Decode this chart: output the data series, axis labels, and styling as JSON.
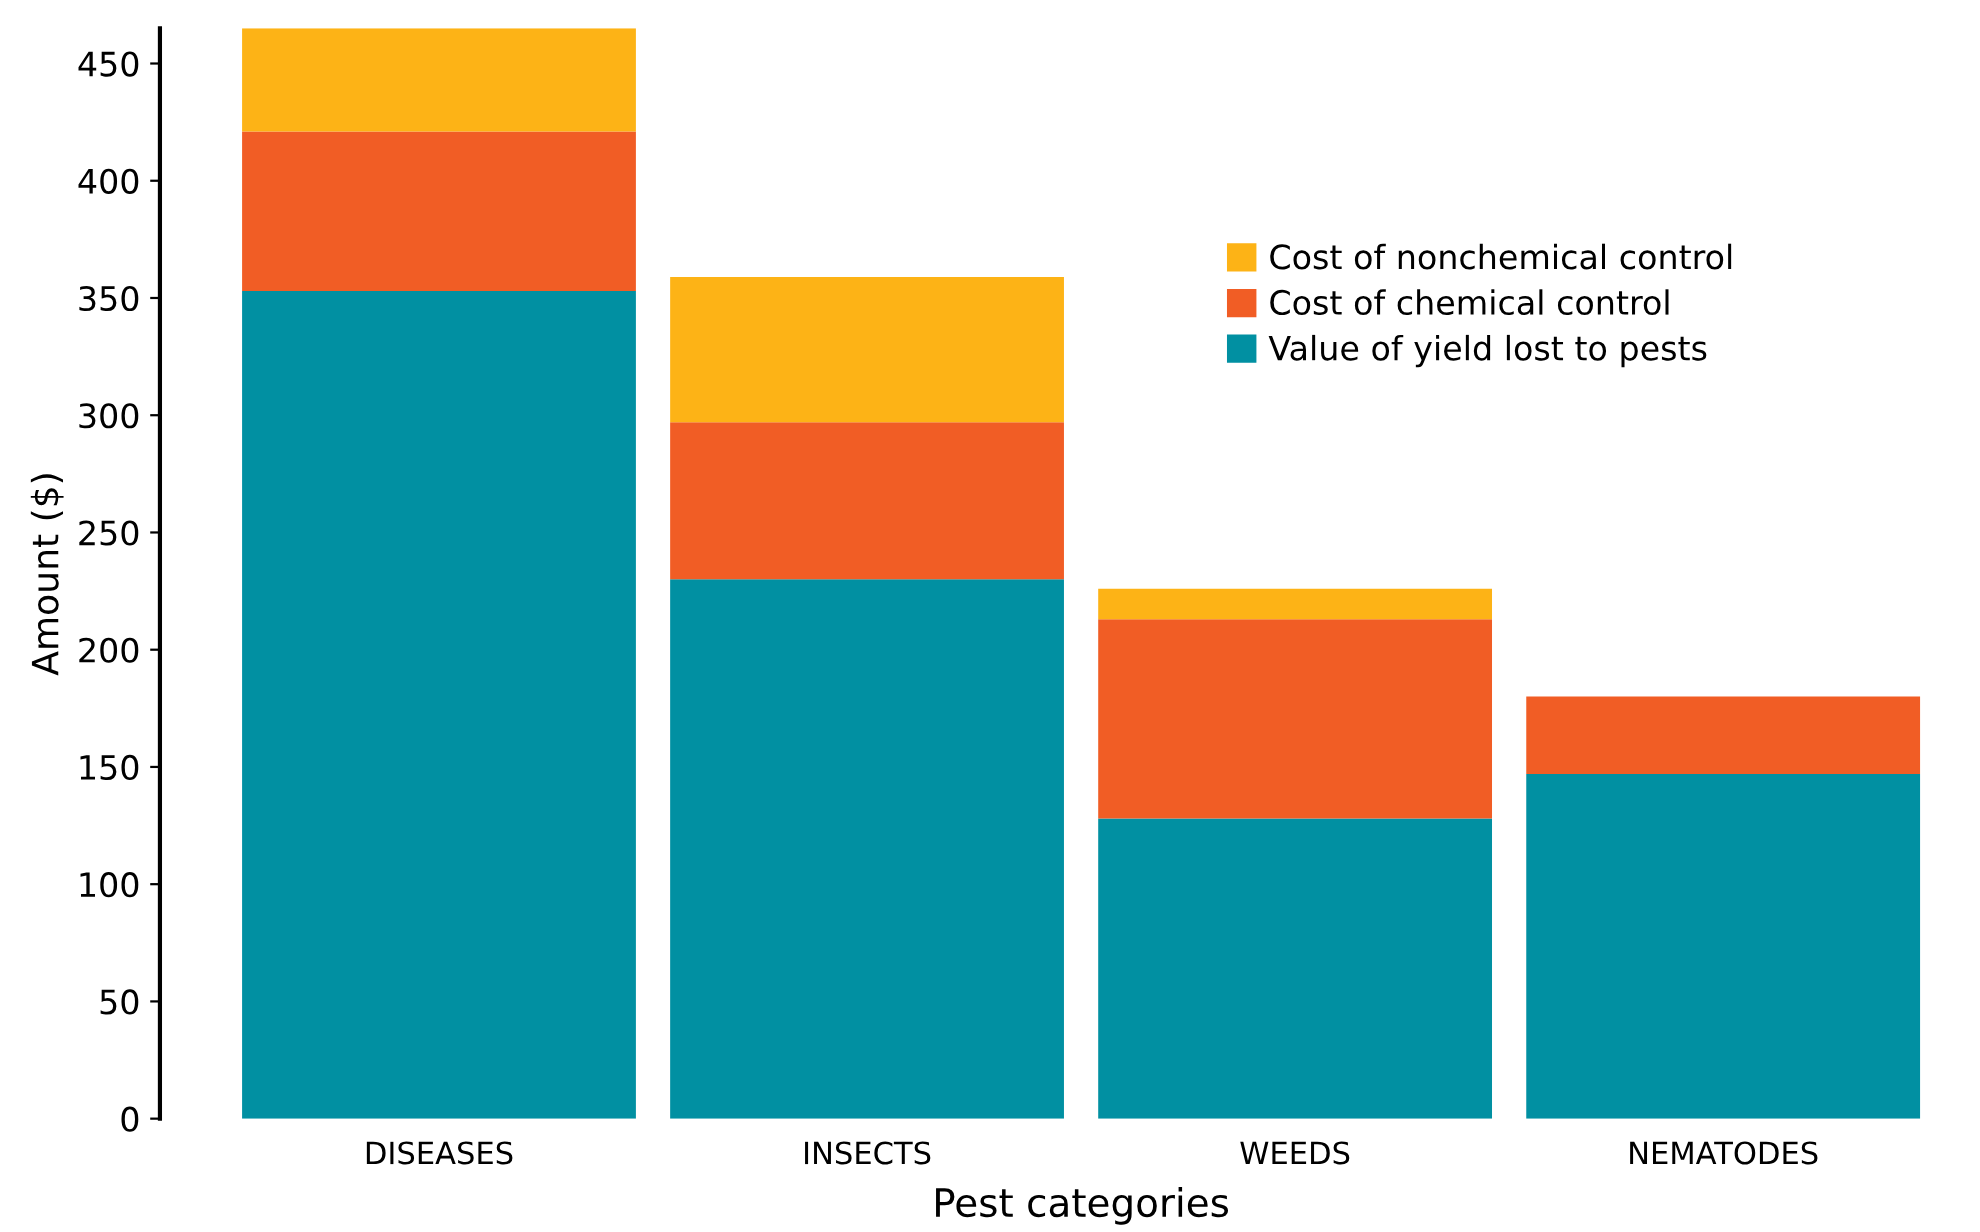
{
  "chart_data": {
    "type": "bar",
    "stacked": true,
    "xlabel": "Pest categories",
    "ylabel": "Amount ($)",
    "categories": [
      "DISEASES",
      "INSECTS",
      "WEEDS",
      "NEMATODES"
    ],
    "series": [
      {
        "name": "Value of yield lost to pests",
        "color": "#0190a2",
        "values": [
          353,
          230,
          128,
          147
        ]
      },
      {
        "name": "Cost of chemical control",
        "color": "#f15d25",
        "values": [
          68,
          67,
          85,
          33
        ]
      },
      {
        "name": "Cost of nonchemical control",
        "color": "#fdb316",
        "values": [
          44,
          62,
          13,
          0
        ]
      }
    ],
    "ylim": [
      0,
      465
    ],
    "yticks": [
      0,
      50,
      100,
      150,
      200,
      250,
      300,
      350,
      400,
      450
    ],
    "grid": false,
    "legend": "top right"
  }
}
